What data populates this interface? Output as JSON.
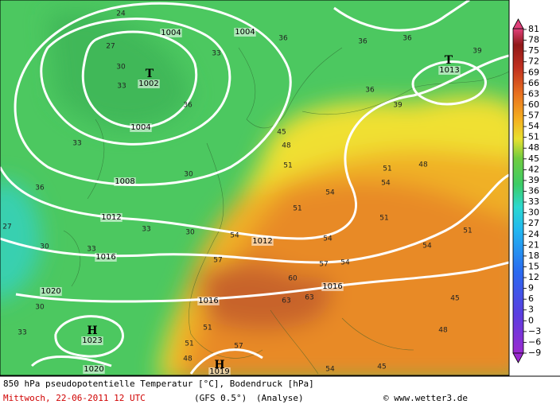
{
  "colorbar": {
    "labels": [
      81,
      78,
      75,
      72,
      69,
      66,
      63,
      60,
      57,
      54,
      51,
      48,
      45,
      42,
      39,
      36,
      33,
      30,
      27,
      24,
      21,
      18,
      15,
      12,
      9,
      6,
      3,
      0,
      {
        "value": -3,
        "label": "−3"
      },
      {
        "value": -6,
        "label": "−6"
      },
      {
        "value": -9,
        "label": "−9"
      }
    ]
  },
  "footer": {
    "title": "850 hPa pseudopotentielle Temperatur [°C], Bodendruck [hPa]",
    "date": "Mittwoch, 22-06-2011  12 UTC",
    "model": "(GFS 0.5°)",
    "run": "(Analyse)",
    "credit": "© www.wetter3.de"
  },
  "map": {
    "pressure_labels": [
      "1004",
      "1004",
      "1002",
      "1004",
      "1008",
      "1012",
      "1016",
      "1020",
      "1023",
      "1020",
      "1012",
      "1016",
      "1016",
      "1013",
      "1019"
    ],
    "centers": [
      "T",
      "T",
      "H",
      "H"
    ],
    "temperature_labels": [
      "24",
      "27",
      "30",
      "33",
      "36",
      "33",
      "33",
      "36",
      "36",
      "36",
      "39",
      "36",
      "39",
      "45",
      "48",
      "51",
      "48",
      "54",
      "51",
      "51",
      "54",
      "51",
      "54",
      "57",
      "54",
      "57",
      "54",
      "60",
      "63",
      "63",
      "51",
      "57",
      "51",
      "48",
      "54",
      "45",
      "54",
      "51",
      "45",
      "48",
      "36",
      "33",
      "30",
      "30",
      "27",
      "30",
      "33",
      "30",
      "33"
    ]
  }
}
